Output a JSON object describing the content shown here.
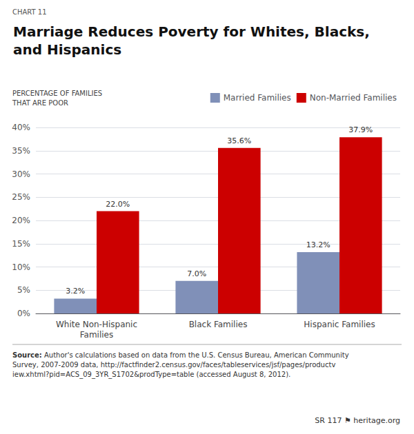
{
  "chart_data": {
    "type": "bar",
    "title": "Marriage Reduces Poverty for Whites, Blacks,\nand Hispanics",
    "ylabel": "PERCENTAGE OF FAMILIES\nTHAT ARE POOR",
    "categories": [
      "White Non-Hispanic\nFamilies",
      "Black Families",
      "Hispanic Families"
    ],
    "series": [
      {
        "name": "Married Families",
        "color": "#8090b8",
        "values": [
          3.2,
          7.0,
          13.2
        ],
        "value_labels": [
          "3.2%",
          "7.0%",
          "13.2%"
        ]
      },
      {
        "name": "Non-Married Families",
        "color": "#cc0000",
        "values": [
          22.0,
          35.6,
          37.9
        ],
        "value_labels": [
          "22.0%",
          "35.6%",
          "37.9%"
        ]
      }
    ],
    "ylim": [
      0,
      40
    ],
    "yticks": [
      {
        "value": 0,
        "label": "0%"
      },
      {
        "value": 5,
        "label": "5%"
      },
      {
        "value": 10,
        "label": "10%"
      },
      {
        "value": 15,
        "label": "15%"
      },
      {
        "value": 20,
        "label": "20%"
      },
      {
        "value": 25,
        "label": "25%"
      },
      {
        "value": 30,
        "label": "30%"
      },
      {
        "value": 35,
        "label": "35%"
      },
      {
        "value": 40,
        "label": "40%"
      }
    ],
    "grid": true,
    "legend": "top",
    "data_labels": true,
    "annotations": [
      "CHART 11",
      "Source:",
      "Author's calculations based on data from the U.S. Census Bureau, American Community Survey, 2007-2009 data, http://factfinder2.census.gov/faces/tableservices/jsf/pages/productview.xhtml?pid=ACS_09_3YR_S1702&prodType=table (accessed August 8, 2012).",
      "SR 117",
      "⚑",
      "heritage.org"
    ]
  }
}
